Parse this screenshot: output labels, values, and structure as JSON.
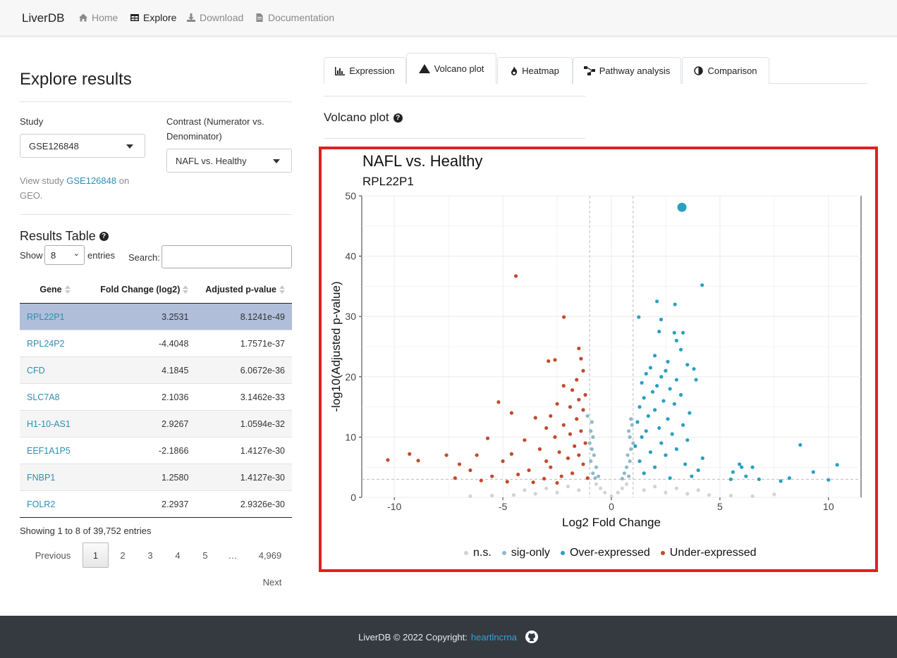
{
  "navbar": {
    "brand": "LiverDB",
    "items": [
      {
        "label": "Home",
        "icon": "home-icon"
      },
      {
        "label": "Explore",
        "icon": "table-icon"
      },
      {
        "label": "Download",
        "icon": "download-icon"
      },
      {
        "label": "Documentation",
        "icon": "document-icon"
      }
    ]
  },
  "sidebar": {
    "title": "Explore results",
    "study_label": "Study",
    "study_value": "GSE126848",
    "contrast_label_line1": "Contrast (Numerator vs.",
    "contrast_label_line2": "Denominator)",
    "contrast_value": "NAFL vs. Healthy",
    "view_prefix": "View study",
    "view_link": "GSE126848",
    "view_suffix": "on",
    "view_line2": "GEO."
  },
  "results": {
    "title": "Results Table",
    "show_label": "Show",
    "show_value": "8",
    "entries_label": "entries",
    "search_label": "Search:",
    "search_value": "",
    "columns": [
      "Gene",
      "Fold Change (log2)",
      "Adjusted p-value"
    ],
    "rows": [
      {
        "gene": "RPL22P1",
        "fc": "3.2531",
        "p": "8.1241e-49"
      },
      {
        "gene": "RPL24P2",
        "fc": "-4.4048",
        "p": "1.7571e-37"
      },
      {
        "gene": "CFD",
        "fc": "4.1845",
        "p": "6.0672e-36"
      },
      {
        "gene": "SLC7A8",
        "fc": "2.1036",
        "p": "3.1462e-33"
      },
      {
        "gene": "H1-10-AS1",
        "fc": "2.9267",
        "p": "1.0594e-32"
      },
      {
        "gene": "EEF1A1P5",
        "fc": "-2.1866",
        "p": "1.4127e-30"
      },
      {
        "gene": "FNBP1",
        "fc": "1.2580",
        "p": "1.4127e-30"
      },
      {
        "gene": "FOLR2",
        "fc": "2.2937",
        "p": "2.9326e-30"
      }
    ],
    "info": "Showing 1 to 8 of 39,752 entries",
    "pagination": {
      "previous": "Previous",
      "pages": [
        "1",
        "2",
        "3",
        "4",
        "5",
        "…",
        "4,969"
      ],
      "current": "1",
      "next": "Next"
    }
  },
  "tabs": [
    {
      "label": "Expression",
      "icon": "bar-chart-icon"
    },
    {
      "label": "Volcano plot",
      "icon": "mountain-icon"
    },
    {
      "label": "Heatmap",
      "icon": "fire-icon"
    },
    {
      "label": "Pathway analysis",
      "icon": "network-icon"
    },
    {
      "label": "Comparison",
      "icon": "half-circle-icon"
    }
  ],
  "active_tab": "Volcano plot",
  "section_title": "Volcano plot",
  "plot": {
    "title": "NAFL vs. Healthy",
    "subtitle": "RPL22P1",
    "legend": [
      {
        "label": "n.s.",
        "color": "#d3d3d3"
      },
      {
        "label": "sig-only",
        "color": "#8fb9c8"
      },
      {
        "label": "Over-expressed",
        "color": "#2aa0c0"
      },
      {
        "label": "Under-expressed",
        "color": "#c44a2c"
      }
    ]
  },
  "chart_data": {
    "type": "scatter",
    "title": "NAFL vs. Healthy",
    "subtitle": "RPL22P1",
    "xlabel": "Log2 Fold Change",
    "ylabel": "-log10(Adjusted p-value)",
    "xlim": [
      -11.5,
      11.5
    ],
    "ylim": [
      0,
      50
    ],
    "x_ticks": [
      -10,
      -5,
      0,
      5,
      10
    ],
    "y_ticks": [
      0,
      10,
      20,
      30,
      40,
      50
    ],
    "thresholds": {
      "x": [
        -1,
        1
      ],
      "y": 3
    },
    "grid": true,
    "legend_position": "bottom",
    "highlight": {
      "gene": "RPL22P1",
      "x": 3.25,
      "y": 48.1
    },
    "series": [
      {
        "name": "Over-expressed",
        "color": "#2aa0c0",
        "points": [
          [
            4.18,
            35.2
          ],
          [
            2.1,
            32.5
          ],
          [
            2.93,
            32.0
          ],
          [
            1.26,
            29.9
          ],
          [
            2.29,
            29.5
          ],
          [
            2.2,
            27.5
          ],
          [
            2.9,
            27.3
          ],
          [
            3.3,
            27.3
          ],
          [
            3.0,
            26.0
          ],
          [
            3.2,
            24.5
          ],
          [
            2.0,
            23.5
          ],
          [
            2.6,
            22.5
          ],
          [
            3.5,
            22.0
          ],
          [
            1.8,
            21.5
          ],
          [
            2.5,
            21.0
          ],
          [
            3.8,
            21.3
          ],
          [
            1.6,
            20.5
          ],
          [
            2.3,
            20.0
          ],
          [
            3.0,
            19.5
          ],
          [
            3.9,
            19.5
          ],
          [
            1.4,
            19.0
          ],
          [
            2.1,
            18.5
          ],
          [
            2.7,
            18.0
          ],
          [
            1.9,
            17.5
          ],
          [
            3.2,
            17.0
          ],
          [
            1.5,
            16.5
          ],
          [
            2.4,
            16.0
          ],
          [
            2.9,
            15.5
          ],
          [
            1.3,
            15.0
          ],
          [
            2.0,
            14.5
          ],
          [
            3.6,
            14.0
          ],
          [
            1.7,
            13.5
          ],
          [
            2.6,
            13.0
          ],
          [
            1.2,
            12.5
          ],
          [
            3.3,
            12.0
          ],
          [
            2.2,
            11.5
          ],
          [
            1.6,
            11.0
          ],
          [
            2.8,
            10.5
          ],
          [
            1.4,
            10.0
          ],
          [
            3.5,
            9.5
          ],
          [
            2.3,
            9.0
          ],
          [
            1.1,
            8.5
          ],
          [
            3.0,
            8.0
          ],
          [
            1.8,
            7.5
          ],
          [
            2.5,
            7.0
          ],
          [
            4.2,
            6.5
          ],
          [
            1.3,
            6.0
          ],
          [
            3.4,
            5.5
          ],
          [
            2.0,
            5.0
          ],
          [
            4.0,
            4.5
          ],
          [
            1.5,
            4.0
          ],
          [
            3.7,
            3.5
          ],
          [
            2.7,
            3.2
          ],
          [
            5.9,
            5.5
          ],
          [
            6.0,
            5.0
          ],
          [
            6.5,
            5.0
          ],
          [
            5.6,
            4.2
          ],
          [
            6.2,
            3.5
          ],
          [
            6.8,
            3.0
          ],
          [
            8.7,
            8.7
          ],
          [
            9.3,
            4.2
          ],
          [
            10.4,
            5.4
          ],
          [
            10.0,
            2.9
          ],
          [
            7.8,
            2.7
          ],
          [
            8.2,
            3.2
          ],
          [
            5.5,
            3.0
          ]
        ]
      },
      {
        "name": "Under-expressed",
        "color": "#c44a2c",
        "points": [
          [
            -4.4,
            36.7
          ],
          [
            -2.19,
            29.9
          ],
          [
            -1.5,
            24.7
          ],
          [
            -2.6,
            22.8
          ],
          [
            -2.9,
            22.6
          ],
          [
            -1.4,
            23.0
          ],
          [
            -1.3,
            21.0
          ],
          [
            -1.6,
            19.5
          ],
          [
            -2.2,
            18.5
          ],
          [
            -1.8,
            17.8
          ],
          [
            -1.2,
            17.0
          ],
          [
            -1.5,
            16.2
          ],
          [
            -5.2,
            15.8
          ],
          [
            -2.5,
            15.5
          ],
          [
            -1.9,
            15.0
          ],
          [
            -1.3,
            14.5
          ],
          [
            -2.8,
            13.5
          ],
          [
            -3.5,
            13.2
          ],
          [
            -4.6,
            14.0
          ],
          [
            -1.6,
            13.0
          ],
          [
            -2.2,
            12.0
          ],
          [
            -3.0,
            11.5
          ],
          [
            -1.4,
            11.0
          ],
          [
            -1.9,
            10.5
          ],
          [
            -2.6,
            10.0
          ],
          [
            -4.0,
            9.5
          ],
          [
            -5.7,
            9.8
          ],
          [
            -1.2,
            9.0
          ],
          [
            -1.7,
            8.5
          ],
          [
            -3.3,
            8.0
          ],
          [
            -2.4,
            7.5
          ],
          [
            -4.6,
            7.2
          ],
          [
            -6.2,
            7.0
          ],
          [
            -1.5,
            7.0
          ],
          [
            -2.0,
            6.5
          ],
          [
            -3.0,
            6.0
          ],
          [
            -5.0,
            6.0
          ],
          [
            -7.0,
            5.5
          ],
          [
            -1.3,
            5.5
          ],
          [
            -2.8,
            5.0
          ],
          [
            -3.8,
            4.5
          ],
          [
            -6.5,
            4.5
          ],
          [
            -1.8,
            4.0
          ],
          [
            -4.3,
            3.8
          ],
          [
            -2.3,
            3.5
          ],
          [
            -5.5,
            3.5
          ],
          [
            -7.2,
            3.2
          ],
          [
            -1.1,
            3.2
          ],
          [
            -3.1,
            3.1
          ],
          [
            -10.3,
            6.2
          ],
          [
            -9.3,
            7.2
          ],
          [
            -8.9,
            6.1
          ],
          [
            -7.6,
            7.0
          ],
          [
            -6.0,
            2.8
          ],
          [
            -4.8,
            2.6
          ],
          [
            -3.6,
            2.5
          ],
          [
            -2.5,
            2.4
          ]
        ]
      },
      {
        "name": "sig-only",
        "color": "#8fb9c8",
        "points": [
          [
            -1.1,
            13.5
          ],
          [
            -0.9,
            12.5
          ],
          [
            -0.95,
            11.0
          ],
          [
            -0.85,
            10.0
          ],
          [
            -1.0,
            9.0
          ],
          [
            -0.9,
            8.0
          ],
          [
            -0.8,
            7.0
          ],
          [
            -0.95,
            6.0
          ],
          [
            -0.7,
            5.0
          ],
          [
            -0.85,
            4.0
          ],
          [
            -0.6,
            3.5
          ],
          [
            -0.75,
            3.2
          ],
          [
            0.9,
            13.0
          ],
          [
            0.95,
            12.0
          ],
          [
            0.8,
            11.0
          ],
          [
            0.85,
            10.0
          ],
          [
            1.0,
            9.0
          ],
          [
            0.9,
            8.0
          ],
          [
            0.75,
            7.0
          ],
          [
            0.85,
            6.0
          ],
          [
            0.7,
            5.0
          ],
          [
            0.6,
            4.0
          ],
          [
            0.8,
            3.5
          ],
          [
            0.5,
            3.1
          ]
        ]
      },
      {
        "name": "n.s.",
        "color": "#d3d3d3",
        "points": [
          [
            0.0,
            0.2
          ],
          [
            -0.3,
            0.8
          ],
          [
            0.3,
            0.8
          ],
          [
            -0.5,
            1.5
          ],
          [
            0.5,
            1.5
          ],
          [
            -0.7,
            2.2
          ],
          [
            0.7,
            2.2
          ],
          [
            -1.5,
            1.2
          ],
          [
            1.5,
            1.2
          ],
          [
            -2.5,
            0.8
          ],
          [
            2.5,
            0.8
          ],
          [
            -3.5,
            0.6
          ],
          [
            3.5,
            0.6
          ],
          [
            -4.5,
            0.4
          ],
          [
            4.5,
            0.4
          ],
          [
            -5.5,
            0.3
          ],
          [
            5.5,
            0.3
          ],
          [
            -6.5,
            0.2
          ],
          [
            6.5,
            0.2
          ],
          [
            -2.0,
            1.8
          ],
          [
            2.0,
            1.8
          ],
          [
            -3.0,
            1.5
          ],
          [
            3.0,
            1.5
          ],
          [
            4.0,
            1.2
          ],
          [
            -4.0,
            1.2
          ],
          [
            7.5,
            0.5
          ]
        ]
      }
    ]
  },
  "footer": {
    "text": "LiverDB © 2022 Copyright:",
    "link": "heartlncrna"
  }
}
